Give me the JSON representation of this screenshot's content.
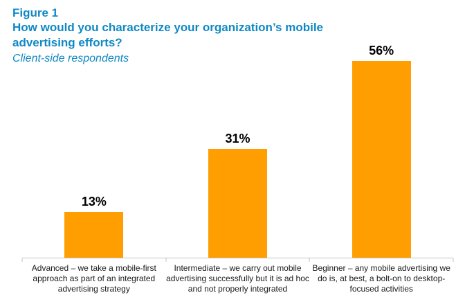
{
  "header": {
    "figure_label": "Figure 1",
    "title_line1": "How would you characterize your organization’s mobile",
    "title_line2": "advertising efforts?",
    "subtitle": "Client-side respondents"
  },
  "colors": {
    "heading_blue": "#1088c4",
    "bar_orange": "#ff9e00",
    "axis_gray": "#c2c2c2",
    "text_dark": "#1a1a1a",
    "value_label_black": "#000000"
  },
  "chart_data": {
    "type": "bar",
    "title": "How would you characterize your organization’s mobile advertising efforts?",
    "subtitle": "Client-side respondents",
    "categories": [
      "Advanced – we take a mobile-first approach as part of an integrated advertising strategy",
      "Intermediate – we carry out mobile advertising successfully but it is ad hoc and not properly integrated",
      "Beginner – any mobile advertising we do is, at best, a bolt-on to desktop-focused activities"
    ],
    "category_display_lines": [
      [
        "Advanced – we take a mobile-first",
        "approach as part of an integrated",
        "advertising strategy"
      ],
      [
        "Intermediate – we carry out mobile",
        "advertising successfully but it is ad hoc",
        "and not properly integrated"
      ],
      [
        "Beginner – any mobile advertising we",
        "do is, at best, a bolt-on to desktop-",
        "focused activities"
      ]
    ],
    "values": [
      13,
      31,
      56
    ],
    "value_labels": [
      "13%",
      "31%",
      "56%"
    ],
    "unit": "%",
    "xlabel": "",
    "ylabel": "",
    "ylim": [
      0,
      60
    ],
    "grid": false,
    "legend": null,
    "bar_color": "#ff9e00"
  }
}
